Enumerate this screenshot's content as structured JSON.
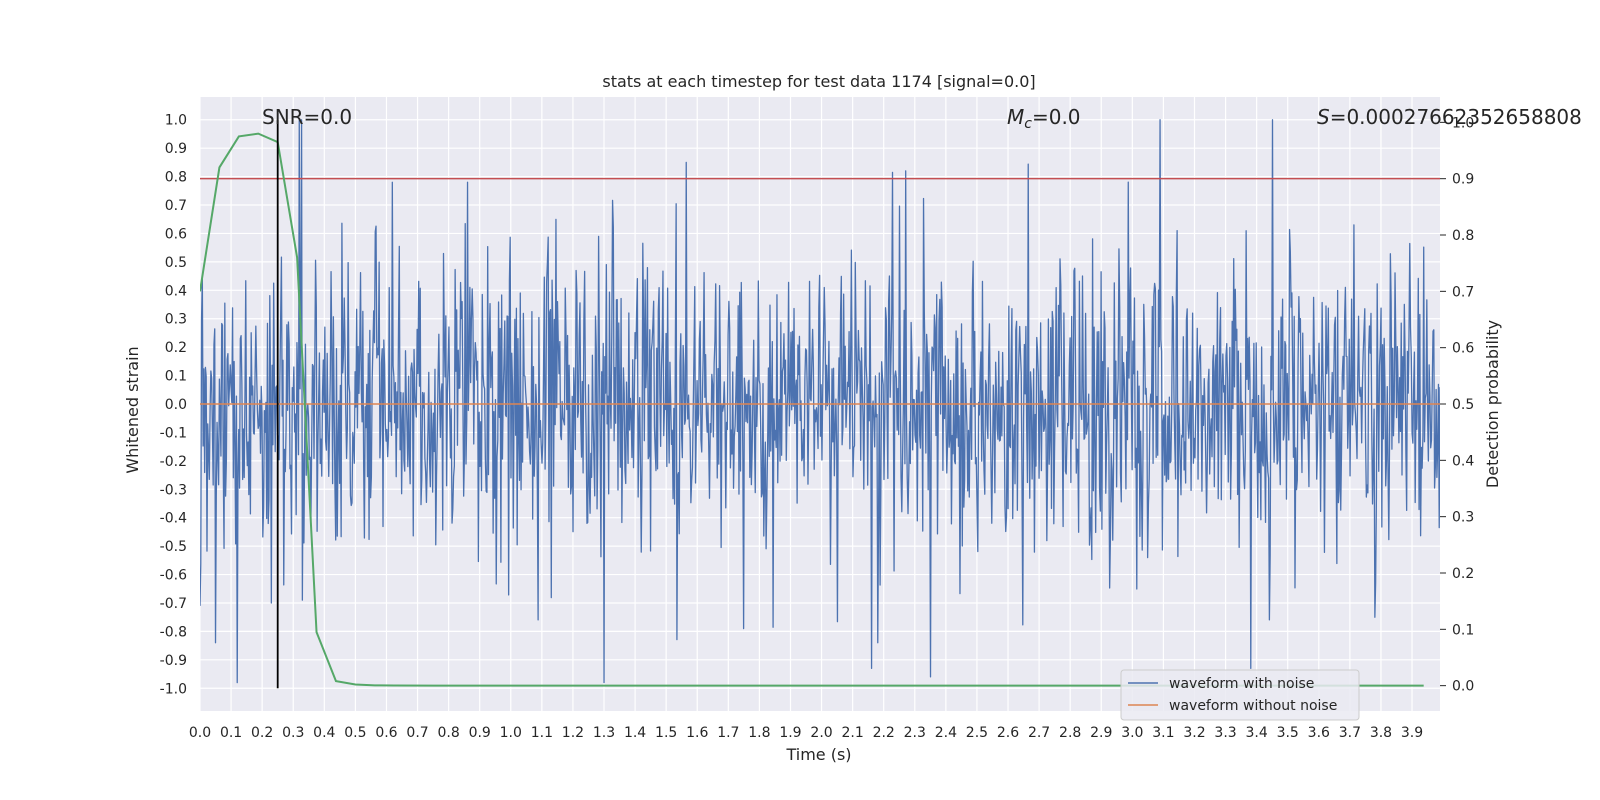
{
  "chart_data": {
    "type": "line",
    "title": "stats at each timestep for test data 1174 [signal=0.0]",
    "xlabel": "Time (s)",
    "ylabel": "Whitened strain",
    "y2label": "Detection probability",
    "xlim": [
      0.0,
      3.99
    ],
    "ylim": [
      -1.08,
      1.08
    ],
    "y2lim": [
      -0.045,
      1.045
    ],
    "x_ticks": [
      0.0,
      0.1,
      0.2,
      0.3,
      0.4,
      0.5,
      0.6,
      0.7,
      0.8,
      0.9,
      1.0,
      1.1,
      1.2,
      1.3,
      1.4,
      1.5,
      1.6,
      1.7,
      1.8,
      1.9,
      2.0,
      2.1,
      2.2,
      2.3,
      2.4,
      2.5,
      2.6,
      2.7,
      2.8,
      2.9,
      3.0,
      3.1,
      3.2,
      3.3,
      3.4,
      3.5,
      3.6,
      3.7,
      3.8,
      3.9
    ],
    "y_ticks": [
      1.0,
      0.9,
      0.8,
      0.7,
      0.6,
      0.5,
      0.4,
      0.3,
      0.2,
      0.1,
      0.0,
      -0.1,
      -0.2,
      -0.3,
      -0.4,
      -0.5,
      -0.6,
      -0.7,
      -0.8,
      -0.9,
      -1.0
    ],
    "y2_ticks": [
      1.0,
      0.9,
      0.8,
      0.7,
      0.6,
      0.5,
      0.4,
      0.3,
      0.2,
      0.1,
      0.0
    ],
    "annotations": {
      "snr": "SNR=0.0",
      "mc_symbol": "M",
      "mc_sub": "c",
      "mc_value": "=0.0",
      "s_symbol": "S",
      "s_value": "=0.00027662352658808"
    },
    "legend": {
      "placement": "bottom-right",
      "entries": [
        {
          "label": "waveform with noise",
          "color": "#4c72b0"
        },
        {
          "label": "waveform without noise",
          "color": "#dd8452"
        }
      ]
    },
    "series": [
      {
        "name": "waveform with noise",
        "axis": "left",
        "color": "#4c72b0",
        "style": "noise",
        "n_samples": 1600,
        "amplitude_range": [
          -0.98,
          1.0
        ]
      },
      {
        "name": "waveform without noise",
        "axis": "left",
        "color": "#dd8452",
        "y": 0.0
      },
      {
        "name": "detection probability",
        "axis": "right",
        "color": "#55a868",
        "x": [
          0.0,
          0.0625,
          0.125,
          0.1875,
          0.25,
          0.3125,
          0.375,
          0.4375,
          0.5,
          0.5625,
          0.625,
          0.75,
          1.0,
          1.5,
          2.0,
          2.5,
          3.0,
          3.5,
          3.9375
        ],
        "y": [
          0.7,
          0.92,
          0.975,
          0.98,
          0.965,
          0.76,
          0.095,
          0.008,
          0.002,
          0.0005,
          0.0002,
          0.0,
          0.0,
          0.0,
          0.0,
          0.0,
          0.0,
          0.0,
          0.0
        ]
      }
    ],
    "threshold": {
      "axis": "right",
      "y": 0.9,
      "color": "#c44e52"
    },
    "marker_line": {
      "x": 0.25,
      "color": "#000000"
    },
    "spikes": [
      {
        "x": 0.32,
        "y": 1.0
      },
      {
        "x": 1.565,
        "y": 0.85
      },
      {
        "x": 2.27,
        "y": 0.82
      },
      {
        "x": 3.09,
        "y": 1.0
      },
      {
        "x": 3.45,
        "y": 1.0
      },
      {
        "x": 0.62,
        "y": 0.78
      },
      {
        "x": 1.3,
        "y": -0.98
      },
      {
        "x": 0.12,
        "y": -0.98
      },
      {
        "x": 2.35,
        "y": -0.96
      },
      {
        "x": 2.16,
        "y": -0.93
      },
      {
        "x": 3.38,
        "y": -0.93
      },
      {
        "x": 0.05,
        "y": -0.84
      },
      {
        "x": 2.18,
        "y": -0.84
      },
      {
        "x": 3.78,
        "y": -0.75
      },
      {
        "x": 0.23,
        "y": -0.7
      },
      {
        "x": 0.33,
        "y": -0.69
      },
      {
        "x": 1.75,
        "y": -0.79
      },
      {
        "x": 0.86,
        "y": 0.78
      }
    ]
  }
}
